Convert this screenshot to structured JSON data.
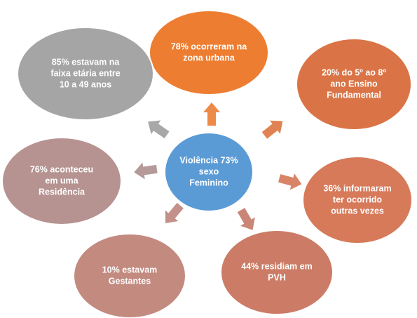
{
  "center": {
    "lines": [
      "Violência 73%",
      "sexo",
      "Feminino"
    ]
  },
  "nodes": [
    {
      "lines": [
        "78% ocorreram na",
        "zona urbana"
      ]
    },
    {
      "lines": [
        "20% do 5º ao 8º",
        "ano Ensino",
        "Fundamental"
      ]
    },
    {
      "lines": [
        "36% informaram",
        "ter ocorrido",
        "outras vezes"
      ]
    },
    {
      "lines": [
        "44% residiam em",
        "PVH"
      ]
    },
    {
      "lines": [
        "10% estavam",
        "Gestantes"
      ]
    },
    {
      "lines": [
        "76% aconteceu",
        "em uma",
        "Residência"
      ]
    },
    {
      "lines": [
        "85% estavam na",
        "faixa etária entre",
        "10 a 49 anos"
      ]
    }
  ]
}
